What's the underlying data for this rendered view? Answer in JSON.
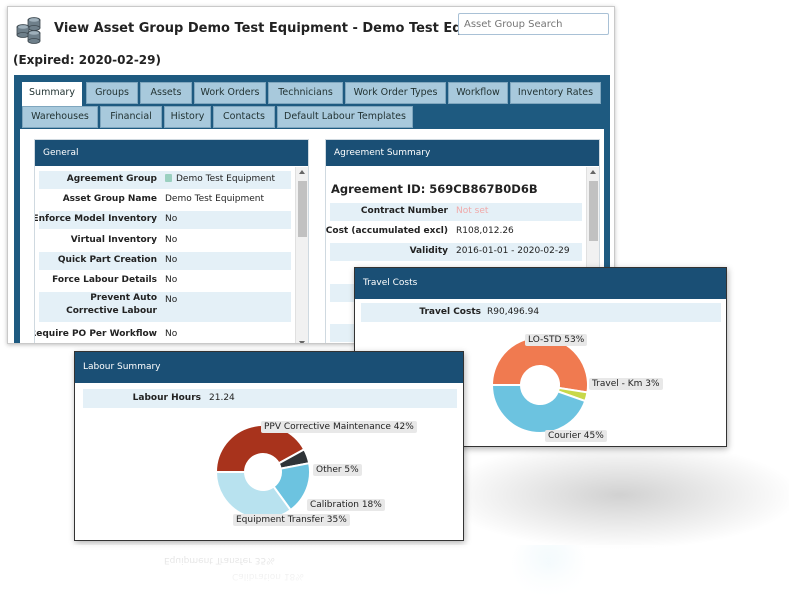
{
  "header": {
    "title": "View Asset Group Demo Test Equipment - Demo Test Equipment",
    "expired": "(Expired: 2020-02-29)",
    "search_placeholder": "Asset Group Search"
  },
  "tabs": {
    "row1": [
      "Summary",
      "Groups",
      "Assets",
      "Work Orders",
      "Technicians",
      "Work Order Types",
      "Workflow",
      "Inventory Rates"
    ],
    "row2": [
      "Warehouses",
      "Financial",
      "History",
      "Contacts",
      "Default Labour Templates"
    ],
    "active": "Summary"
  },
  "general": {
    "title": "General",
    "rows": [
      {
        "label": "Agreement Group",
        "value": "Demo Test Equipment"
      },
      {
        "label": "Asset Group Name",
        "value": "Demo Test Equipment"
      },
      {
        "label": "Enforce Model Inventory",
        "value": "No"
      },
      {
        "label": "Virtual Inventory",
        "value": "No"
      },
      {
        "label": "Quick Part Creation",
        "value": "No"
      },
      {
        "label": "Force Labour Details",
        "value": "No"
      },
      {
        "label": "Prevent Auto Corrective Labour",
        "value": "No"
      },
      {
        "label": "Require PO Per Workflow",
        "value": "No"
      }
    ]
  },
  "agreement": {
    "title": "Agreement Summary",
    "id_text": "Agreement ID: 569CB867B0D6B",
    "rows": [
      {
        "label": "Contract Number",
        "value": "Not set"
      },
      {
        "label": "Cost (accumulated excl)",
        "value": "R108,012.26"
      },
      {
        "label": "Validity",
        "value": "2016-01-01 - 2020-02-29"
      }
    ]
  },
  "travel": {
    "title": "Travel Costs",
    "label": "Travel Costs",
    "value": "R90,496.94",
    "slices": [
      {
        "name": "LO-STD",
        "label": "LO-STD 53%",
        "pct": 53,
        "color": "#f07a50"
      },
      {
        "name": "Travel - Km",
        "label": "Travel - Km 3%",
        "pct": 3,
        "color": "#c8d84a"
      },
      {
        "name": "Courier",
        "label": "Courier 45%",
        "pct": 45,
        "color": "#6cc3e0"
      }
    ]
  },
  "labour": {
    "title": "Labour Summary",
    "label": "Labour Hours",
    "value": "21.24",
    "slices": [
      {
        "name": "PPV Corrective Maintenance",
        "label": "PPV Corrective Maintenance 42%",
        "pct": 42,
        "color": "#a8331c"
      },
      {
        "name": "Other",
        "label": "Other 5%",
        "pct": 5,
        "color": "#2f3438"
      },
      {
        "name": "Calibration",
        "label": "Calibration 18%",
        "pct": 18,
        "color": "#6cc3e0"
      },
      {
        "name": "Equipment Transfer",
        "label": "Equipment Transfer 35%",
        "pct": 35,
        "color": "#b8e2ef"
      }
    ]
  },
  "colors": {
    "header_blue": "#1a4f75",
    "tab_bar_blue": "#1e5a80",
    "row_alt": "#e4f0f7",
    "not_set": "#f0a9a9"
  }
}
